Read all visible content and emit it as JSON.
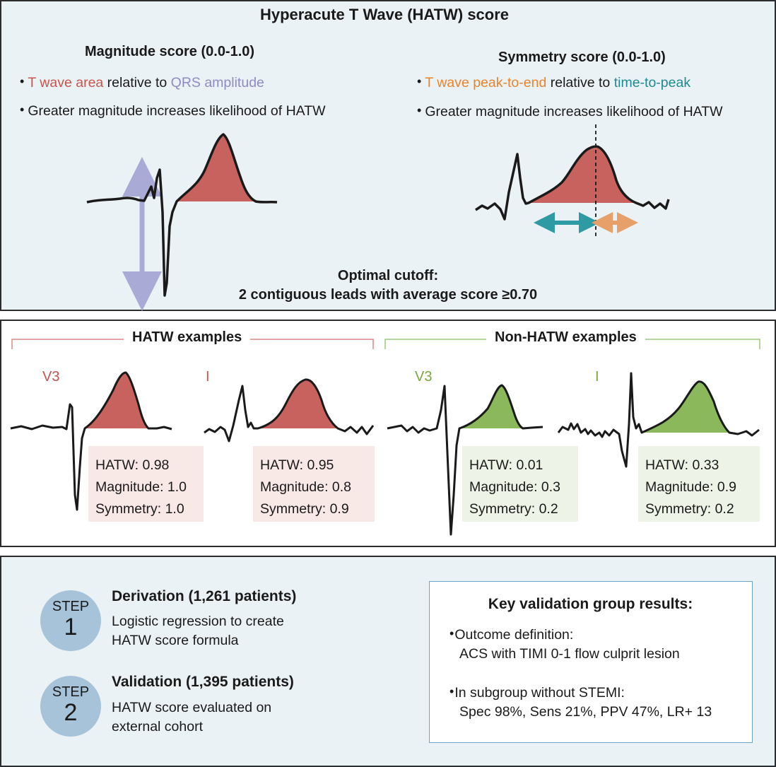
{
  "top": {
    "title": "Hyperacute T Wave (HATW) score",
    "magnitude": {
      "heading": "Magnitude score (0.0-1.0)",
      "bullet1_a": "T wave area",
      "bullet1_b": " relative to ",
      "bullet1_c": "QRS amplitude",
      "bullet2": "Greater magnitude increases likelihood of HATW"
    },
    "symmetry": {
      "heading": "Symmetry score (0.0-1.0)",
      "bullet1_a": "T wave peak-to-end",
      "bullet1_b": " relative to ",
      "bullet1_c": "time-to-peak",
      "bullet2": "Greater magnitude increases likelihood of HATW"
    },
    "cutoff_line1": "Optimal cutoff:",
    "cutoff_line2": "2 contiguous leads with average score ≥0.70"
  },
  "examples": {
    "hatw_label": "HATW examples",
    "non_hatw_label": "Non-HATW examples",
    "items": [
      {
        "lead": "V3",
        "hatw": "HATW: 0.98",
        "magnitude": "Magnitude: 1.0",
        "symmetry": "Symmetry: 1.0"
      },
      {
        "lead": "I",
        "hatw": "HATW: 0.95",
        "magnitude": "Magnitude: 0.8",
        "symmetry": "Symmetry: 0.9"
      },
      {
        "lead": "V3",
        "hatw": "HATW: 0.01",
        "magnitude": "Magnitude: 0.3",
        "symmetry": "Symmetry: 0.2"
      },
      {
        "lead": "I",
        "hatw": "HATW: 0.33",
        "magnitude": "Magnitude: 0.9",
        "symmetry": "Symmetry: 0.2"
      }
    ]
  },
  "steps": [
    {
      "word": "STEP",
      "num": "1",
      "heading": "Derivation (1,261 patients)",
      "desc_line1": "Logistic regression to create",
      "desc_line2": "HATW score formula"
    },
    {
      "word": "STEP",
      "num": "2",
      "heading": "Validation (1,395 patients)",
      "desc_line1": "HATW score evaluated on",
      "desc_line2": "external cohort"
    }
  ],
  "results": {
    "title": "Key validation group results:",
    "b1_line1": "Outcome definition:",
    "b1_line2": "ACS with TIMI 0-1 flow culprit lesion",
    "b2_line1": "In subgroup without STEMI:",
    "b2_line2": "Spec 98%, Sens 21%, PPV 47%, LR+ 13"
  },
  "colors": {
    "red_fill": "#c8625e",
    "green_fill": "#8bb85a",
    "lavender": "#aaaad6",
    "teal": "#2e9aa3",
    "orange": "#e8a06a"
  }
}
